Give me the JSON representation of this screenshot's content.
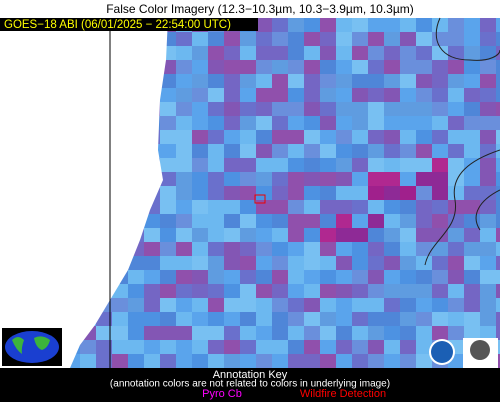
{
  "header": {
    "title": "False Color Imagery (12.3−10.3µm, 10.3−3.9µm, 10.3µm)"
  },
  "overlay": {
    "satellite_label": "GOES−18 ABI (06/01/2025 − 22:54:00 UTC)"
  },
  "annotation_key": {
    "title": "Annotation Key",
    "note": "(annotation colors are not related to colors in underlying image)",
    "items": [
      "Pyro Cb",
      "Wildfire Detection"
    ]
  }
}
